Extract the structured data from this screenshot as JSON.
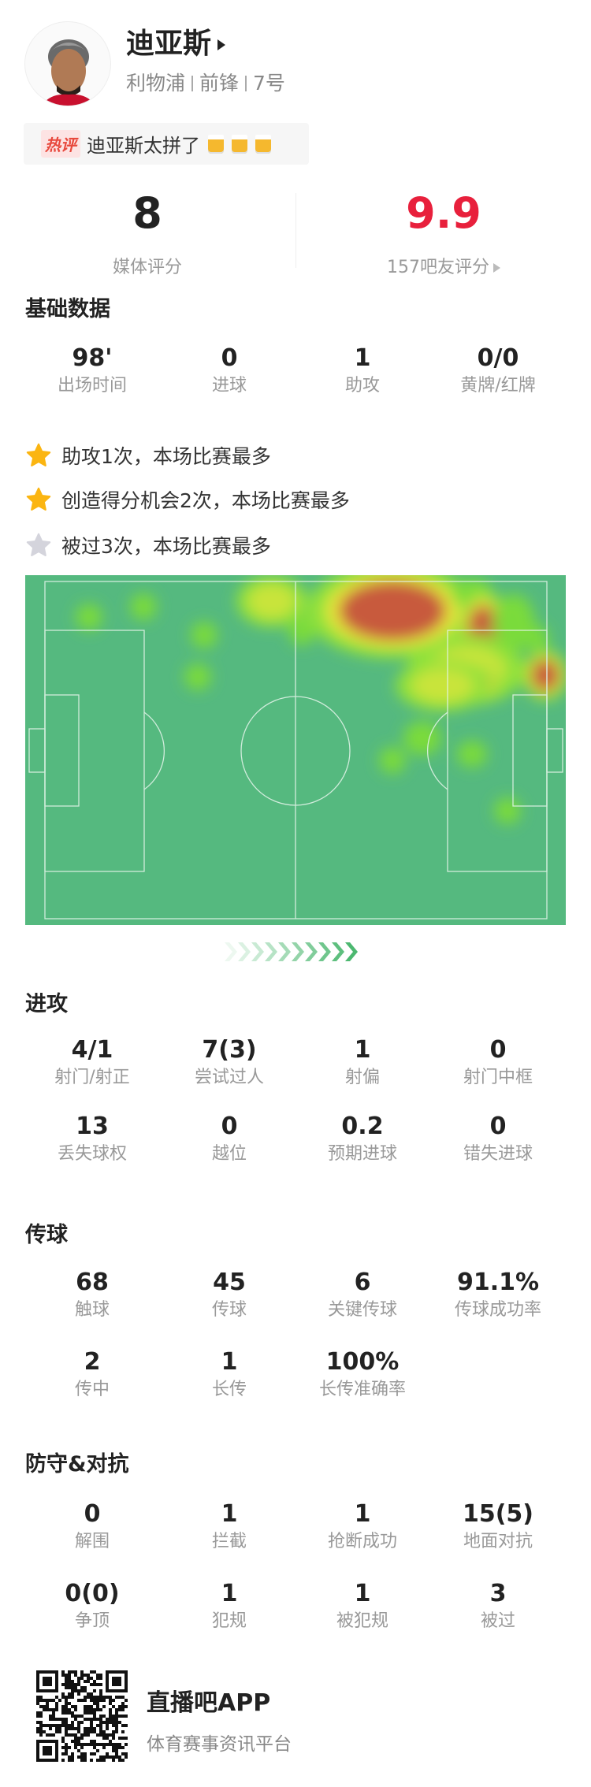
{
  "player": {
    "name": "迪亚斯",
    "team": "利物浦",
    "position": "前锋",
    "number": "7号"
  },
  "hot_comment": {
    "tag": "热评",
    "text": "迪亚斯太拼了",
    "emoji": "beer-mug-icon ×3"
  },
  "ratings": {
    "media": {
      "value": "8",
      "label": "媒体评分"
    },
    "fans": {
      "value": "9.9",
      "label": "157吧友评分"
    },
    "fans_color": "#e8203c"
  },
  "basic": {
    "title": "基础数据",
    "stats": [
      {
        "v": "98'",
        "l": "出场时间"
      },
      {
        "v": "0",
        "l": "进球"
      },
      {
        "v": "1",
        "l": "助攻"
      },
      {
        "v": "0/0",
        "l": "黄牌/红牌"
      }
    ]
  },
  "highlights": [
    {
      "text": "助攻1次，本场比赛最多",
      "star": "gold"
    },
    {
      "text": "创造得分机会2次，本场比赛最多",
      "star": "gold"
    },
    {
      "text": "被过3次，本场比赛最多",
      "star": "silver"
    }
  ],
  "attack": {
    "title": "进攻",
    "stats": [
      {
        "v": "4/1",
        "l": "射门/射正"
      },
      {
        "v": "7(3)",
        "l": "尝试过人"
      },
      {
        "v": "1",
        "l": "射偏"
      },
      {
        "v": "0",
        "l": "射门中框"
      },
      {
        "v": "13",
        "l": "丢失球权"
      },
      {
        "v": "0",
        "l": "越位"
      },
      {
        "v": "0.2",
        "l": "预期进球"
      },
      {
        "v": "0",
        "l": "错失进球"
      }
    ]
  },
  "passing": {
    "title": "传球",
    "stats": [
      {
        "v": "68",
        "l": "触球"
      },
      {
        "v": "45",
        "l": "传球"
      },
      {
        "v": "6",
        "l": "关键传球"
      },
      {
        "v": "91.1%",
        "l": "传球成功率"
      },
      {
        "v": "2",
        "l": "传中"
      },
      {
        "v": "1",
        "l": "长传"
      },
      {
        "v": "100%",
        "l": "长传准确率"
      }
    ]
  },
  "defense": {
    "title": "防守&对抗",
    "stats": [
      {
        "v": "0",
        "l": "解围"
      },
      {
        "v": "1",
        "l": "拦截"
      },
      {
        "v": "1",
        "l": "抢断成功"
      },
      {
        "v": "15(5)",
        "l": "地面对抗"
      },
      {
        "v": "0(0)",
        "l": "争顶"
      },
      {
        "v": "1",
        "l": "犯规"
      },
      {
        "v": "1",
        "l": "被犯规"
      },
      {
        "v": "3",
        "l": "被过"
      }
    ]
  },
  "footer": {
    "app": "直播吧APP",
    "tagline": "体育赛事资讯平台"
  },
  "colors": {
    "pitch": "#55b97f",
    "accent_green": "#4cb870",
    "star_gold": "#fbb511",
    "star_silver": "#d4d4dc"
  }
}
